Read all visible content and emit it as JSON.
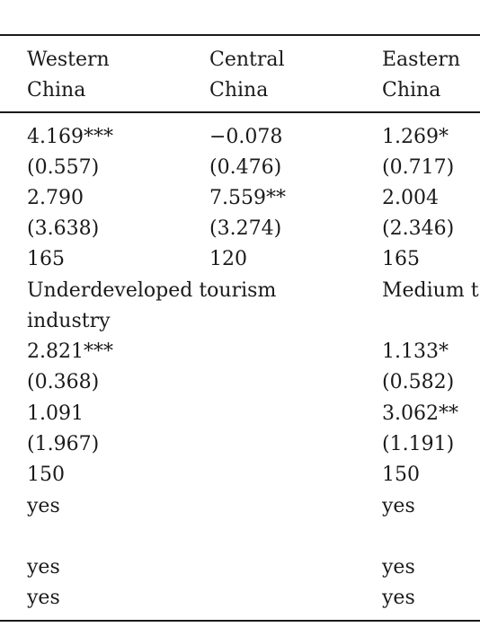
{
  "header": {
    "col1_line1": "Western",
    "col1_line2": "China",
    "col2_line1": "Central",
    "col2_line2": "China",
    "col3_line1": "Eastern",
    "col3_line2": "China"
  },
  "panel_a": {
    "rows": [
      {
        "c1": "4.169***",
        "c2": "−0.078",
        "c3": "1.269*"
      },
      {
        "c1": "(0.557)",
        "c2": "(0.476)",
        "c3": "(0.717)"
      },
      {
        "c1": "2.790",
        "c2": "7.559**",
        "c3": "2.004"
      },
      {
        "c1": "(3.638)",
        "c2": "(3.274)",
        "c3": "(2.346)"
      },
      {
        "c1": "165",
        "c2": "120",
        "c3": "165"
      }
    ]
  },
  "panel_b": {
    "header_left_line1": "Underdeveloped tourism",
    "header_left_line2": "industry",
    "header_right": "Medium t",
    "rows": [
      {
        "c1": "2.821***",
        "c3": "1.133*"
      },
      {
        "c1": "(0.368)",
        "c3": "(0.582)"
      },
      {
        "c1": "1.091",
        "c3": "3.062**"
      },
      {
        "c1": "(1.967)",
        "c3": "(1.191)"
      },
      {
        "c1": "150",
        "c3": "150"
      },
      {
        "c1": "yes",
        "c3": "yes"
      },
      {
        "c1": "",
        "c3": ""
      },
      {
        "c1": "yes",
        "c3": "yes"
      },
      {
        "c1": "yes",
        "c3": "yes"
      }
    ]
  }
}
